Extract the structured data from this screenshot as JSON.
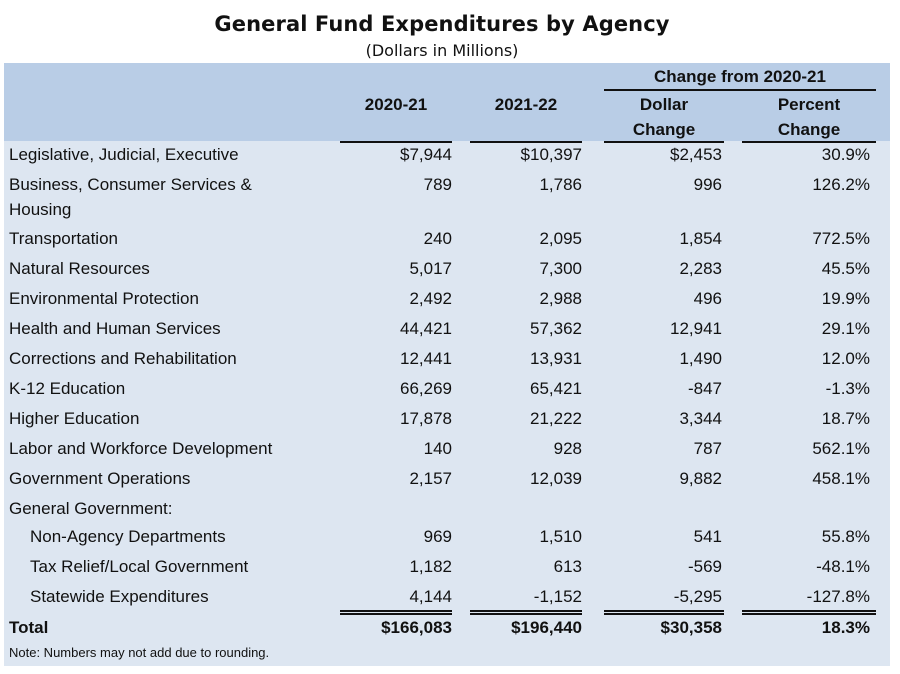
{
  "title": "General Fund Expenditures by Agency",
  "subtitle": "(Dollars in Millions)",
  "header": {
    "group": "Change from  2020-21",
    "col1": "2020-21",
    "col2": "2021-22",
    "col3_line1": "Dollar",
    "col3_line2": "Change",
    "col4_line1": "Percent",
    "col4_line2": "Change"
  },
  "rows": [
    {
      "label": "Legislative, Judicial, Executive",
      "v2020": "$7,944",
      "v2021": "$10,397",
      "dollar": "$2,453",
      "percent": "30.9%"
    },
    {
      "label": "Business, Consumer Services &",
      "label2": "Housing",
      "v2020": "789",
      "v2021": "1,786",
      "dollar": "996",
      "percent": "126.2%"
    },
    {
      "label": "Transportation",
      "v2020": "240",
      "v2021": "2,095",
      "dollar": "1,854",
      "percent": "772.5%"
    },
    {
      "label": "Natural Resources",
      "v2020": "5,017",
      "v2021": "7,300",
      "dollar": "2,283",
      "percent": "45.5%"
    },
    {
      "label": "Environmental Protection",
      "v2020": "2,492",
      "v2021": "2,988",
      "dollar": "496",
      "percent": "19.9%"
    },
    {
      "label": "Health and Human Services",
      "v2020": "44,421",
      "v2021": "57,362",
      "dollar": "12,941",
      "percent": "29.1%"
    },
    {
      "label": "Corrections and Rehabilitation",
      "v2020": "12,441",
      "v2021": "13,931",
      "dollar": "1,490",
      "percent": "12.0%"
    },
    {
      "label": "K-12 Education",
      "v2020": "66,269",
      "v2021": "65,421",
      "dollar": "-847",
      "percent": "-1.3%"
    },
    {
      "label": "Higher Education",
      "v2020": "17,878",
      "v2021": "21,222",
      "dollar": "3,344",
      "percent": "18.7%"
    },
    {
      "label": "Labor and Workforce Development",
      "v2020": "140",
      "v2021": "928",
      "dollar": "787",
      "percent": "562.1%"
    },
    {
      "label": "Government Operations",
      "v2020": "2,157",
      "v2021": "12,039",
      "dollar": "9,882",
      "percent": "458.1%"
    },
    {
      "label": "General Government:",
      "v2020": "",
      "v2021": "",
      "dollar": "",
      "percent": ""
    },
    {
      "label": "Non-Agency Departments",
      "v2020": "969",
      "v2021": "1,510",
      "dollar": "541",
      "percent": "55.8%"
    },
    {
      "label": "Tax Relief/Local Government",
      "v2020": "1,182",
      "v2021": "613",
      "dollar": "-569",
      "percent": "-48.1%"
    },
    {
      "label": "Statewide Expenditures",
      "v2020": "4,144",
      "v2021": "-1,152",
      "dollar": "-5,295",
      "percent": "-127.8%"
    }
  ],
  "total": {
    "label": "Total",
    "v2020": "$166,083",
    "v2021": "$196,440",
    "dollar": "$30,358",
    "percent": "18.3%"
  },
  "note": "Note: Numbers may not add due to rounding."
}
